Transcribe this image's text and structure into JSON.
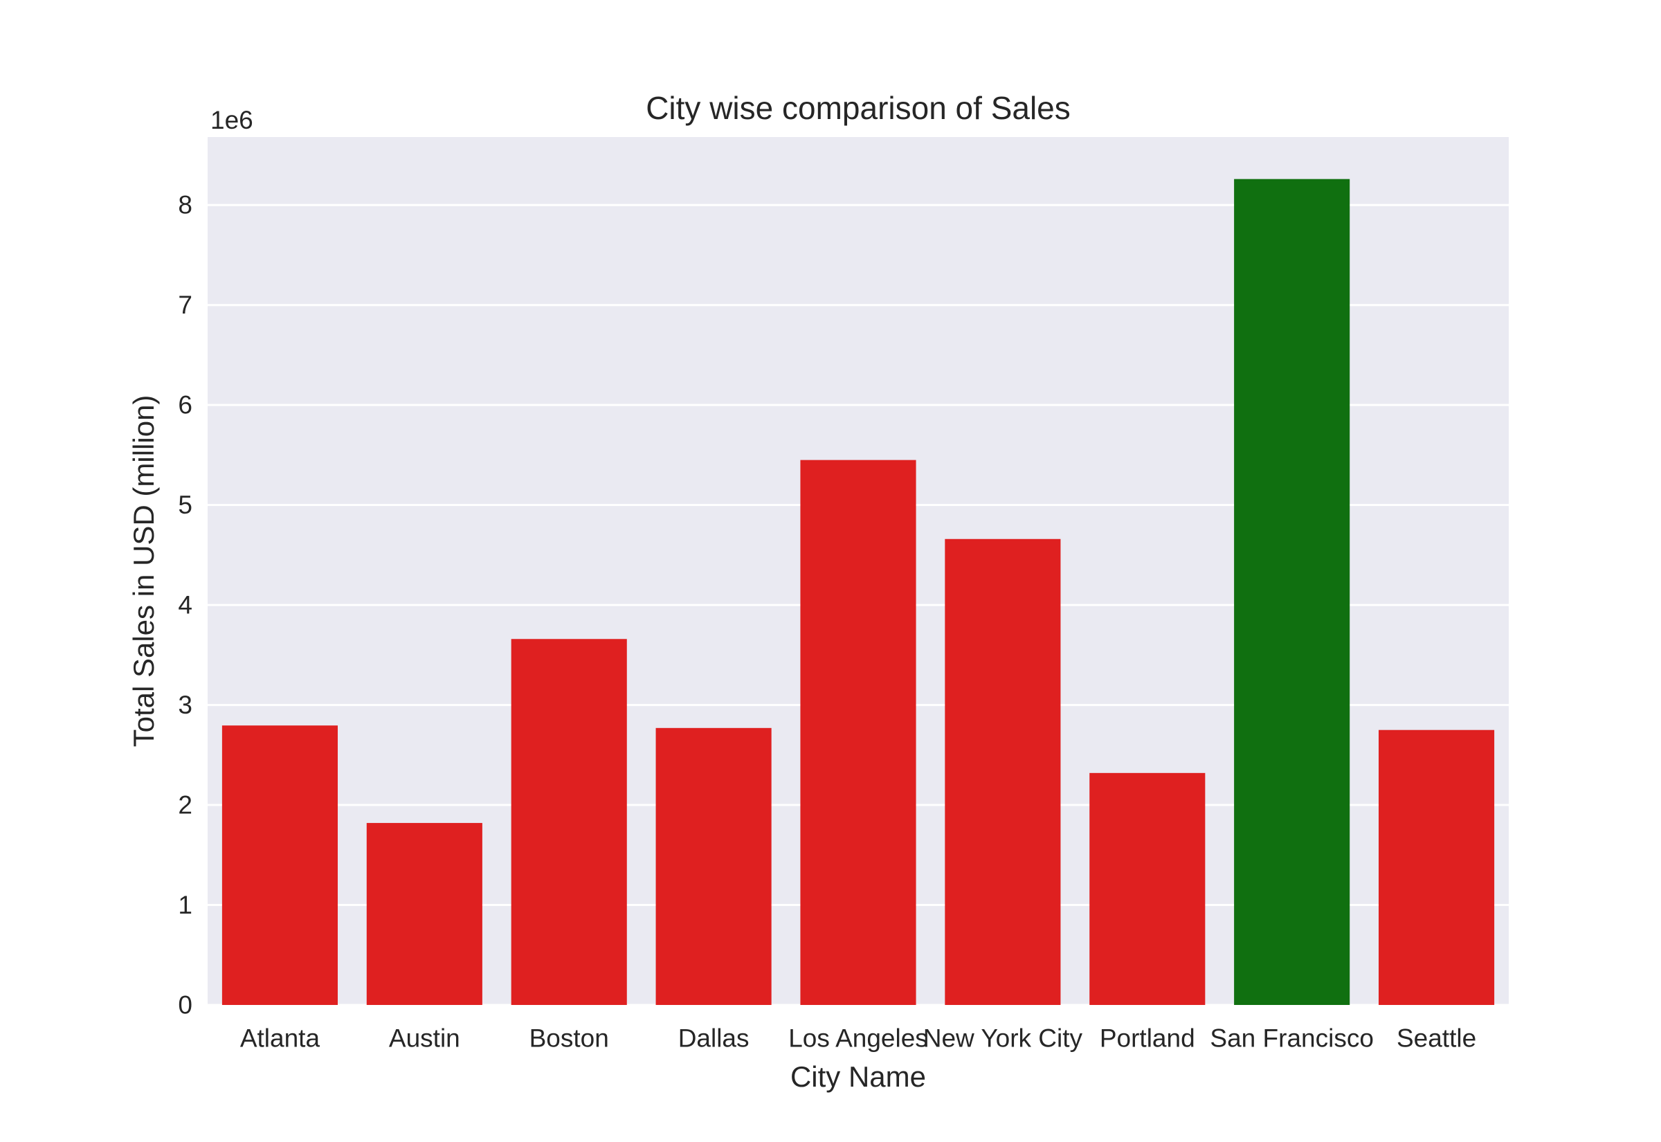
{
  "chart_data": {
    "type": "bar",
    "title": "City wise comparison of Sales",
    "xlabel": "City Name",
    "ylabel": "Total Sales in USD (million)",
    "y_offset_label": "1e6",
    "categories": [
      "Atlanta",
      "Austin",
      "Boston",
      "Dallas",
      "Los Angeles",
      "New York City",
      "Portland",
      "San Francisco",
      "Seattle"
    ],
    "values": [
      2795000,
      1820000,
      3660000,
      2770000,
      5450000,
      4660000,
      2320000,
      8260000,
      2750000
    ],
    "ylim": [
      0,
      8680000
    ],
    "yticks": [
      0,
      1000000,
      2000000,
      3000000,
      4000000,
      5000000,
      6000000,
      7000000,
      8000000
    ],
    "ytick_labels": [
      "0",
      "1",
      "2",
      "3",
      "4",
      "5",
      "6",
      "7",
      "8"
    ],
    "highlight_category": "San Francisco",
    "grid": true,
    "colors": {
      "bar": "#df2020",
      "highlight": "#107010",
      "background": "#eaeaf2",
      "grid": "#ffffff",
      "text": "#262626"
    }
  }
}
